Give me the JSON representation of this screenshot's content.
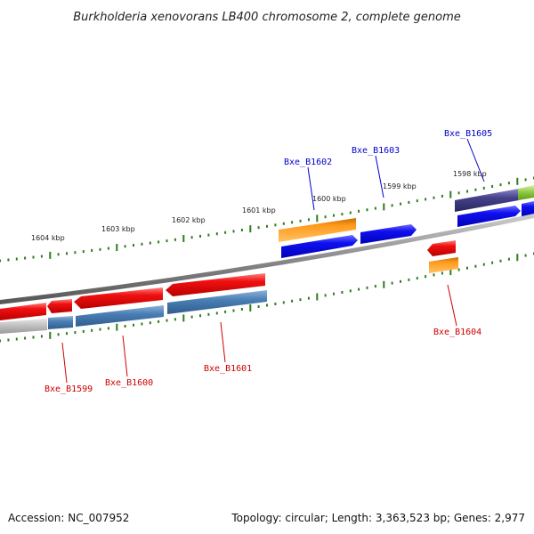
{
  "title": "Burkholderia xenovorans LB400 chromosome 2, complete genome",
  "footer": {
    "accession": "Accession: NC_007952",
    "summary": "Topology: circular; Length: 3,363,523 bp; Genes: 2,977"
  },
  "colors": {
    "backbone": "#888888",
    "tick": "#2e7d1e",
    "label_forward": "#0000cc",
    "label_reverse": "#cc0000",
    "forward_cds": "#0000ee",
    "reverse_cds": "#ee0000",
    "orange_feature": "#ff9900",
    "steelblue_feature": "#4a7fb5",
    "gray_feature": "#b8b8b8",
    "purple_feature": "#3f3d80",
    "green_feature": "#8cc63f"
  },
  "scale_labels": [
    "1604 kbp",
    "1603 kbp",
    "1602 kbp",
    "1601 kbp",
    "1600 kbp",
    "1599 kbp",
    "1598 kbp"
  ],
  "gene_labels": [
    {
      "text": "Bxe_B1602",
      "strand": "forward"
    },
    {
      "text": "Bxe_B1603",
      "strand": "forward"
    },
    {
      "text": "Bxe_B1605",
      "strand": "forward"
    },
    {
      "text": "Bxe_B1599",
      "strand": "reverse"
    },
    {
      "text": "Bxe_B1600",
      "strand": "reverse"
    },
    {
      "text": "Bxe_B1601",
      "strand": "reverse"
    },
    {
      "text": "Bxe_B1604",
      "strand": "reverse"
    }
  ]
}
